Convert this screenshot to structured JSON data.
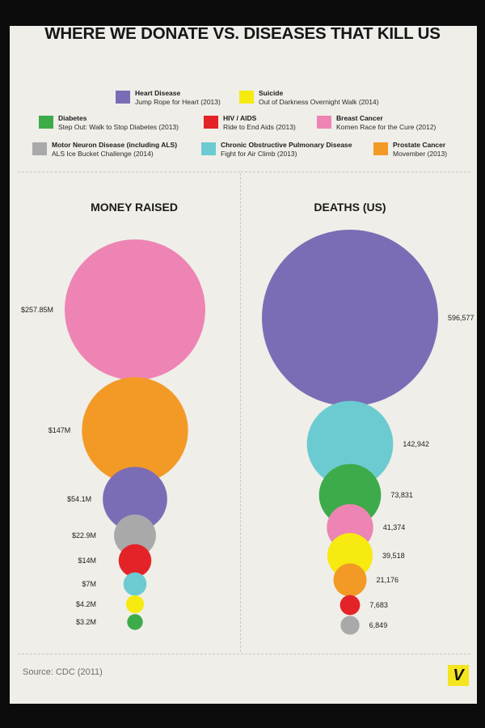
{
  "title": "WHERE WE DONATE VS. DISEASES THAT KILL US",
  "legend": [
    {
      "name": "Heart Disease",
      "event": "Jump Rope for Heart (2013)",
      "color": "#7b6db5"
    },
    {
      "name": "Suicide",
      "event": "Out of Darkness Overnight Walk (2014)",
      "color": "#f6ea10"
    },
    {
      "name": "Diabetes",
      "event": "Step Out: Walk to Stop Diabetes (2013)",
      "color": "#3dab4a"
    },
    {
      "name": "HIV / AIDS",
      "event": "Ride to End Aids (2013)",
      "color": "#e42328"
    },
    {
      "name": "Breast Cancer",
      "event": "Komen Race for the Cure (2012)",
      "color": "#ee84b4"
    },
    {
      "name": "Motor Neuron Disease (including ALS)",
      "event": "ALS Ice Bucket Challenge (2014)",
      "color": "#a9a9a9"
    },
    {
      "name": "Chronic Obstructive Pulmonary Disease",
      "event": "Fight for Air Climb (2013)",
      "color": "#6ccbd1"
    },
    {
      "name": "Prostate Cancer",
      "event": "Movember (2013)",
      "color": "#f39a26"
    }
  ],
  "chart_data": [
    {
      "type": "bubble",
      "title": "MONEY RAISED",
      "unit": "USD millions",
      "categories": [
        "Breast Cancer",
        "Prostate Cancer",
        "Heart Disease",
        "Motor Neuron Disease (including ALS)",
        "HIV / AIDS",
        "Chronic Obstructive Pulmonary Disease",
        "Suicide",
        "Diabetes"
      ],
      "values": [
        257.85,
        147,
        54.1,
        22.9,
        14,
        7,
        4.2,
        3.2
      ],
      "labels": [
        "$257.85M",
        "$147M",
        "$54.1M",
        "$22.9M",
        "$14M",
        "$7M",
        "$4.2M",
        "$3.2M"
      ]
    },
    {
      "type": "bubble",
      "title": "DEATHS (US)",
      "unit": "deaths",
      "categories": [
        "Heart Disease",
        "Chronic Obstructive Pulmonary Disease",
        "Diabetes",
        "Breast Cancer",
        "Suicide",
        "Prostate Cancer",
        "HIV / AIDS",
        "Motor Neuron Disease (including ALS)"
      ],
      "values": [
        596577,
        142942,
        73831,
        41374,
        39518,
        21176,
        7683,
        6849
      ],
      "labels": [
        "596,577",
        "142,942",
        "73,831",
        "41,374",
        "39,518",
        "21,176",
        "7,683",
        "6,849"
      ]
    }
  ],
  "source": "Source: CDC (2011)",
  "logo_letter": "V"
}
